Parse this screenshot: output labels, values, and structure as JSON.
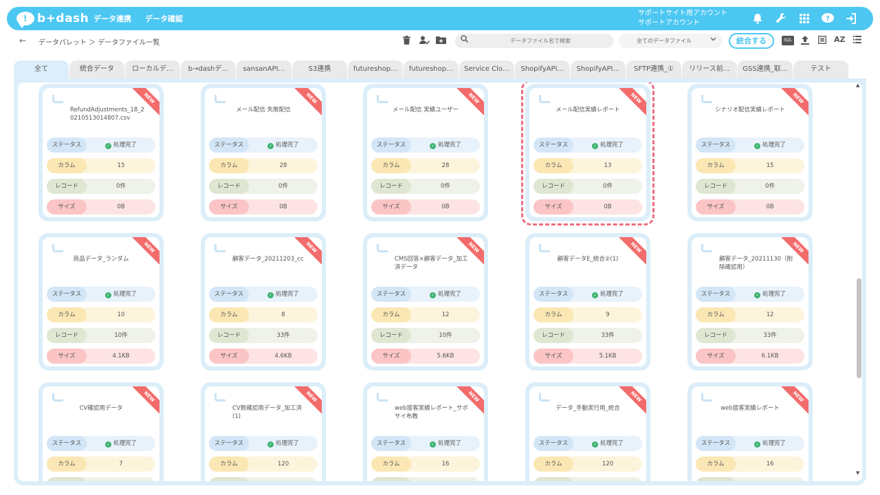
{
  "app": {
    "logo_text": "b+dash",
    "nav": [
      "データ連携",
      "データ確認"
    ],
    "account_line1": "サポートサイト用アカウント",
    "account_line2": "サポートアカウント"
  },
  "topicons": [
    "bell-icon",
    "wrench-icon",
    "grid-icon",
    "help-icon",
    "logout-icon"
  ],
  "subbar": {
    "back": "←",
    "breadcrumb": "データパレット ＞ データファイル一覧",
    "search_placeholder": "データファイル名で検索",
    "filter_selected": "全てのデータファイル",
    "merge_button": "統合する",
    "sql_label": "SQL",
    "sort_label": "AZ"
  },
  "tabs": [
    "全て",
    "統合データ",
    "ローカルデ…",
    "b→dashデ…",
    "sansanAPI…",
    "S3連携",
    "futureshop…",
    "futureshop…",
    "Service Clo…",
    "ShopifyAPI…",
    "ShopifyAPI…",
    "SFTP連携_①",
    "リリース前…",
    "GSS連携_取…",
    "テスト"
  ],
  "labels": {
    "status": "ステータス",
    "columns": "カラム",
    "records": "レコード",
    "size": "サイズ",
    "new_badge": "NEW"
  },
  "cards": [
    {
      "title": "RefundAdjustments_18_20210513014807.csv",
      "status": "処理完了",
      "columns": "15",
      "records": "0件",
      "size": "0B"
    },
    {
      "title": "メール配信 失敗配信",
      "status": "処理完了",
      "columns": "28",
      "records": "0件",
      "size": "0B"
    },
    {
      "title": "メール配信 実績ユーザー",
      "status": "処理完了",
      "columns": "28",
      "records": "0件",
      "size": "0B"
    },
    {
      "title": "メール配信実績レポート",
      "status": "処理完了",
      "columns": "13",
      "records": "0件",
      "size": "0B"
    },
    {
      "title": "シナリオ配信実績レポート",
      "status": "処理完了",
      "columns": "15",
      "records": "0件",
      "size": "0B"
    },
    {
      "title": "商品データ_ランダム",
      "status": "処理完了",
      "columns": "10",
      "records": "10件",
      "size": "4.1KB"
    },
    {
      "title": "顧客データ_20211203_cc",
      "status": "処理完了",
      "columns": "8",
      "records": "33件",
      "size": "4.6KB"
    },
    {
      "title": "CMS回答×顧客データ_加工済データ",
      "status": "処理完了",
      "columns": "12",
      "records": "10件",
      "size": "5.6KB"
    },
    {
      "title": "顧客データE_統合②(1)",
      "status": "処理完了",
      "columns": "9",
      "records": "33件",
      "size": "5.1KB"
    },
    {
      "title": "顧客データ_20211130（削除確認用）",
      "status": "処理完了",
      "columns": "12",
      "records": "33件",
      "size": "6.1KB"
    },
    {
      "title": "CV確認用データ",
      "status": "処理完了",
      "columns": "7",
      "records": "",
      "size": ""
    },
    {
      "title": "CV数確認用データ_加工済(1)",
      "status": "処理完了",
      "columns": "120",
      "records": "",
      "size": ""
    },
    {
      "title": "web接客実績レポート_サポサイ布教",
      "status": "処理完了",
      "columns": "16",
      "records": "",
      "size": ""
    },
    {
      "title": "データ_手動実行用_統合",
      "status": "処理完了",
      "columns": "120",
      "records": "",
      "size": ""
    },
    {
      "title": "web接客実績レポート",
      "status": "処理完了",
      "columns": "16",
      "records": "",
      "size": ""
    }
  ],
  "selected_card_index": 3
}
